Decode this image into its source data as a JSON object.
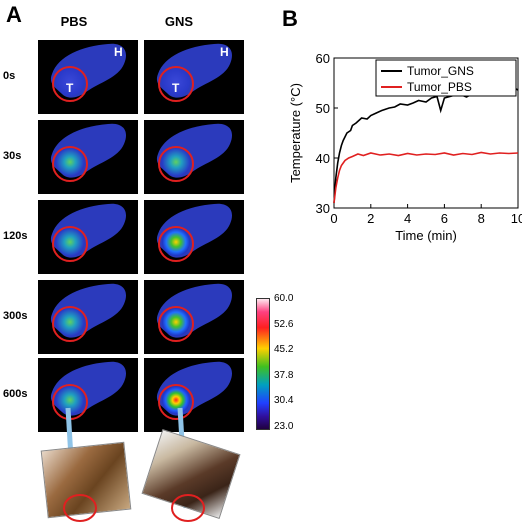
{
  "panel_a": {
    "letter": "A",
    "columns": [
      "PBS",
      "GNS"
    ],
    "rows": [
      "0s",
      "30s",
      "120s",
      "300s",
      "600s"
    ],
    "heart_marker": "H",
    "tumor_marker": "T",
    "tumor_heat": [
      [
        0.0,
        0.0
      ],
      [
        0.35,
        0.4
      ],
      [
        0.45,
        0.62
      ],
      [
        0.5,
        0.8
      ],
      [
        0.52,
        0.95
      ]
    ]
  },
  "colorbar": {
    "ticks": [
      "60.0",
      "52.6",
      "45.2",
      "37.8",
      "30.4",
      "23.0"
    ]
  },
  "panel_b": {
    "letter": "B"
  },
  "chart_data": {
    "type": "line",
    "xlabel": "Time (min)",
    "ylabel": "Temperature (°C)",
    "xlim": [
      0,
      10
    ],
    "ylim": [
      30,
      60
    ],
    "xticks": [
      0,
      2,
      4,
      6,
      8,
      10
    ],
    "yticks": [
      30,
      40,
      50,
      60
    ],
    "legend_position": "top-right",
    "series": [
      {
        "name": "Tumor_GNS",
        "color": "#000000",
        "x": [
          0,
          0.1,
          0.2,
          0.3,
          0.4,
          0.5,
          0.7,
          0.9,
          1.0,
          1.2,
          1.5,
          1.8,
          2.0,
          2.3,
          2.6,
          3.0,
          3.3,
          3.6,
          4.0,
          4.3,
          4.6,
          5.0,
          5.3,
          5.6,
          5.8,
          6.0,
          6.4,
          6.8,
          7.2,
          7.6,
          8.0,
          8.4,
          8.8,
          9.2,
          9.5,
          9.8,
          10.0
        ],
        "values": [
          31,
          36,
          39,
          41,
          42.5,
          43.5,
          45,
          45.5,
          46.5,
          47,
          48,
          47.8,
          48.5,
          49,
          49.5,
          50,
          50.2,
          50.8,
          50.6,
          51,
          51.5,
          51.2,
          52,
          52.3,
          49.5,
          52,
          52.4,
          52.8,
          52.2,
          53,
          53.4,
          52.5,
          53.2,
          52.9,
          53.5,
          54,
          53.6
        ]
      },
      {
        "name": "Tumor_PBS",
        "color": "#e02020",
        "x": [
          0,
          0.1,
          0.2,
          0.3,
          0.4,
          0.6,
          0.8,
          1.0,
          1.3,
          1.6,
          2.0,
          2.5,
          3.0,
          3.5,
          4.0,
          4.5,
          5.0,
          5.5,
          6.0,
          6.5,
          7.0,
          7.5,
          8.0,
          8.5,
          9.0,
          9.5,
          10.0
        ],
        "values": [
          31,
          34,
          36,
          37.5,
          38.5,
          39.5,
          40,
          40.3,
          40.8,
          40.5,
          41,
          40.6,
          40.8,
          40.5,
          40.9,
          40.6,
          40.8,
          40.7,
          41,
          40.6,
          40.9,
          40.7,
          41.1,
          40.8,
          41,
          40.9,
          41
        ]
      }
    ]
  }
}
